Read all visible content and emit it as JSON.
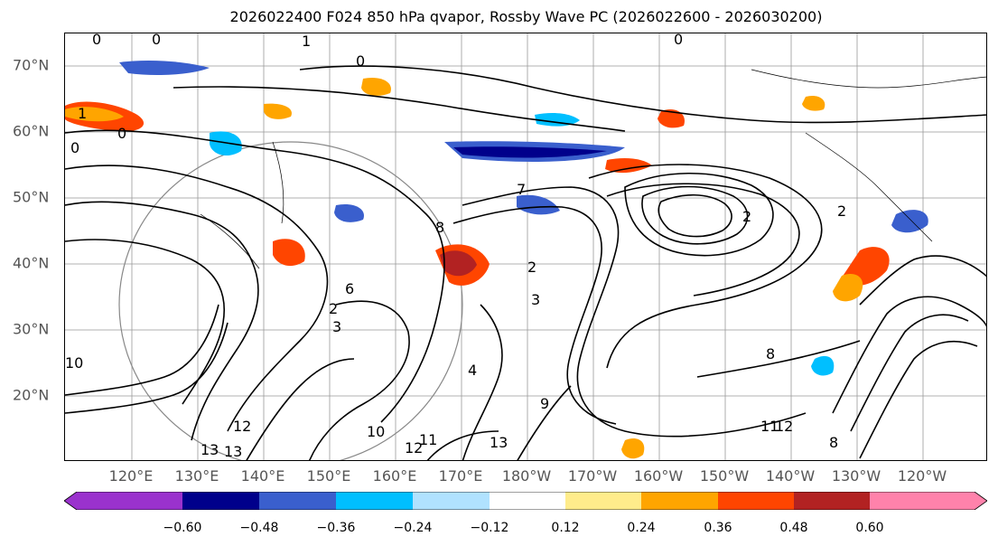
{
  "title": "2026022400 F024 850 hPa qvapor, Rossby Wave PC (2026022600 - 2026030200)",
  "lat_labels": [
    "70°N",
    "60°N",
    "50°N",
    "40°N",
    "30°N",
    "20°N"
  ],
  "lon_labels": [
    "120°E",
    "130°E",
    "140°E",
    "150°E",
    "160°E",
    "170°E",
    "180°W",
    "170°W",
    "160°W",
    "150°W",
    "140°W",
    "130°W",
    "120°W"
  ],
  "colorbar": {
    "ticks": [
      "−0.60",
      "−0.48",
      "−0.36",
      "−0.24",
      "−0.12",
      "0.12",
      "0.24",
      "0.36",
      "0.48",
      "0.60"
    ],
    "colors": [
      "#9a32cd",
      "#00008b",
      "#3a5fcd",
      "#00bfff",
      "#b0e2ff",
      "#ffffff",
      "#ffec8b",
      "#ffa500",
      "#ff4500",
      "#b22222",
      "#ff82ab"
    ]
  },
  "contour_labels": [
    "0",
    "0",
    "1",
    "0",
    "0",
    "1",
    "0",
    "0",
    "2",
    "3",
    "6",
    "2",
    "7",
    "3",
    "8",
    "10",
    "12",
    "13",
    "13",
    "10",
    "11",
    "12",
    "13",
    "8",
    "12",
    "11",
    "4",
    "2",
    "8",
    "9",
    "2"
  ]
}
